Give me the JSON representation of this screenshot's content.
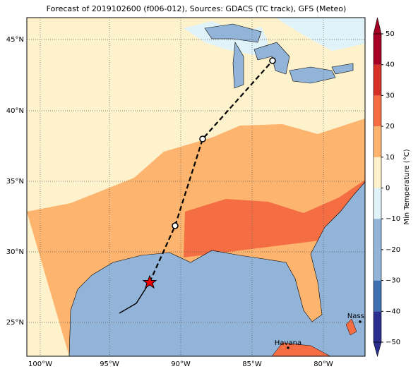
{
  "title": "Forecast of 2019102600 (f006-012), Sources: GDACS (TC track), GFS (Meteo)",
  "lon_labels": [
    "100°W",
    "95°W",
    "90°W",
    "85°W",
    "80°W"
  ],
  "lat_labels": [
    "45°N",
    "40°N",
    "35°N",
    "30°N",
    "25°N"
  ],
  "colorbar": {
    "label": "Min Temperature (°C)",
    "lim": [
      -50,
      50
    ],
    "ticks": [
      50,
      40,
      30,
      20,
      10,
      0,
      {
        "value": -10,
        "label": "−10"
      },
      {
        "value": -20,
        "label": "−20"
      },
      {
        "value": -30,
        "label": "−30"
      },
      {
        "value": -40,
        "label": "−40"
      },
      {
        "value": -50,
        "label": "−50"
      }
    ],
    "colors": [
      "#2a2f8f",
      "#3e6fb0",
      "#92b4d8",
      "#92b4d8",
      "#e0f3f8",
      "#fef2cc",
      "#fdb46e",
      "#f46d43",
      "#d73027",
      "#a50026"
    ]
  },
  "cities": [
    "Nassau",
    "Havana"
  ]
}
